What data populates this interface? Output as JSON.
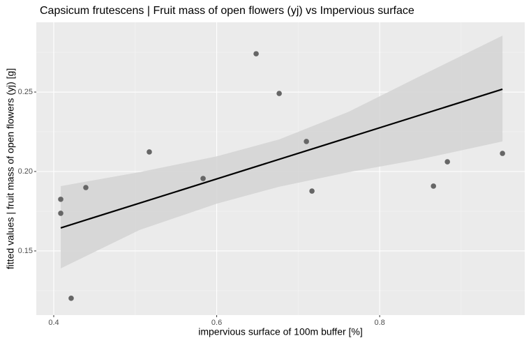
{
  "chart_data": {
    "type": "scatter",
    "title": "Capsicum frutescens | Fruit mass of open flowers (yj) vs Impervious surface",
    "x_label": "impervious surface of 100m buffer [%]",
    "y_label": "fitted values | fruit mass of open flowers (yj) [g]",
    "xlim": [
      0.3786,
      0.978
    ],
    "ylim": [
      0.1096,
      0.2939
    ],
    "xticks": [
      0.4,
      0.6,
      0.8
    ],
    "yticks": [
      0.15,
      {
        "value": 0.2,
        "label": "0.20"
      },
      0.25
    ],
    "x_minor_ticks": [
      0.5,
      0.7,
      0.9
    ],
    "y_minor_ticks": [
      0.125,
      0.175,
      0.225,
      0.275
    ],
    "grid": true,
    "points": {
      "color": "#666666",
      "x": [
        0.4086,
        0.4086,
        0.4214,
        0.4394,
        0.5173,
        0.5833,
        0.6484,
        0.6767,
        0.7101,
        0.7169,
        0.866,
        0.8831,
        0.9507
      ],
      "y": [
        0.1737,
        0.1825,
        0.1202,
        0.1899,
        0.2123,
        0.1956,
        0.2741,
        0.2491,
        0.2189,
        0.1877,
        0.1908,
        0.2061,
        0.2114
      ]
    },
    "fit": {
      "color": "#000000",
      "x": [
        0.4086,
        0.9507
      ],
      "y": [
        0.1645,
        0.2518
      ]
    },
    "band": {
      "color": "#d3d3d3",
      "x": [
        0.4086,
        0.5054,
        0.6005,
        0.6767,
        0.7623,
        0.848,
        0.9507
      ],
      "upper": [
        0.1908,
        0.1996,
        0.2096,
        0.2202,
        0.2377,
        0.2596,
        0.2855
      ],
      "lower": [
        0.139,
        0.1632,
        0.1798,
        0.1904,
        0.1996,
        0.2075,
        0.2189
      ]
    }
  }
}
